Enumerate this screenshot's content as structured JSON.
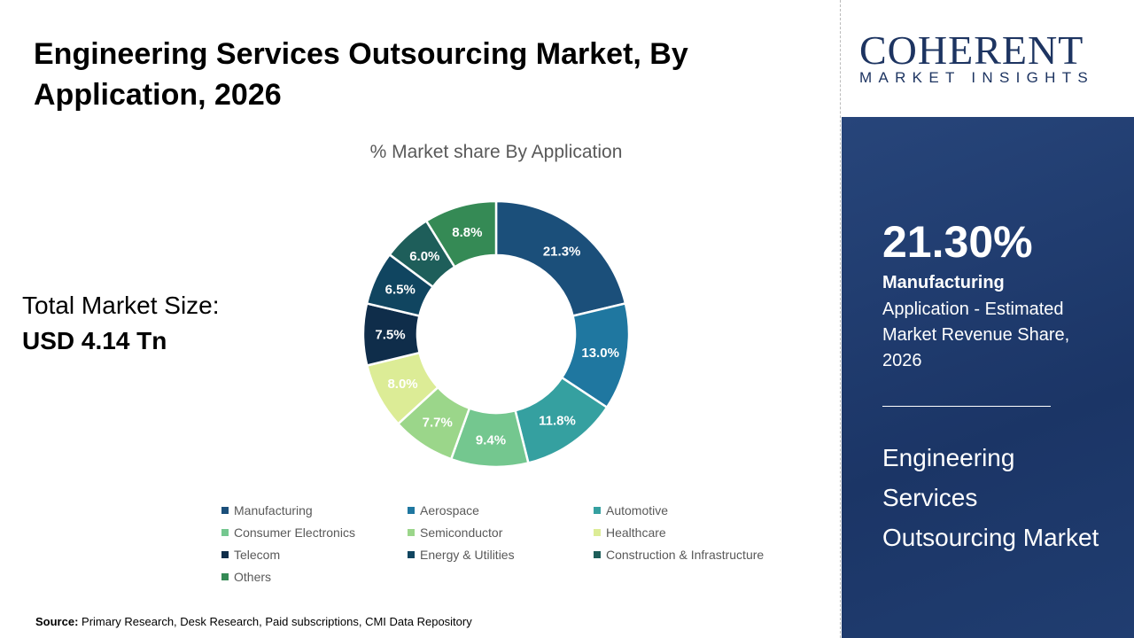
{
  "title": "Engineering Services Outsourcing Market, By Application, 2026",
  "total_market": {
    "label": "Total Market Size:",
    "value": "USD 4.14 Tn"
  },
  "source": {
    "label": "Source:",
    "text": " Primary Research, Desk Research, Paid subscriptions, CMI Data Repository"
  },
  "logo": {
    "big": "COHERENT",
    "small": "MARKET INSIGHTS"
  },
  "panel": {
    "percent": "21.30%",
    "segment": "Manufacturing",
    "description": "Application - Estimated Market Revenue Share, 2026",
    "market": "Engineering Services Outsourcing Market"
  },
  "chart_data": {
    "type": "pie",
    "donut": true,
    "title": "% Market share By Application",
    "categories": [
      "Manufacturing",
      "Aerospace",
      "Automotive",
      "Consumer Electronics",
      "Semiconductor",
      "Healthcare",
      "Telecom",
      "Energy & Utilities",
      "Construction & Infrastructure",
      "Others"
    ],
    "values": [
      21.3,
      13.0,
      11.8,
      9.4,
      7.7,
      8.0,
      7.5,
      6.5,
      6.0,
      8.8
    ],
    "labels": [
      "21.3%",
      "13.0%",
      "11.8%",
      "9.4%",
      "7.7%",
      "8.0%",
      "7.5%",
      "6.5%",
      "6.0%",
      "8.8%"
    ],
    "colors": [
      "#1b4f7a",
      "#1f77a0",
      "#35a0a0",
      "#74c78f",
      "#9bd68a",
      "#dcec96",
      "#0f2d4a",
      "#104560",
      "#1e5e5a",
      "#358a55"
    ],
    "legend_position": "bottom"
  }
}
